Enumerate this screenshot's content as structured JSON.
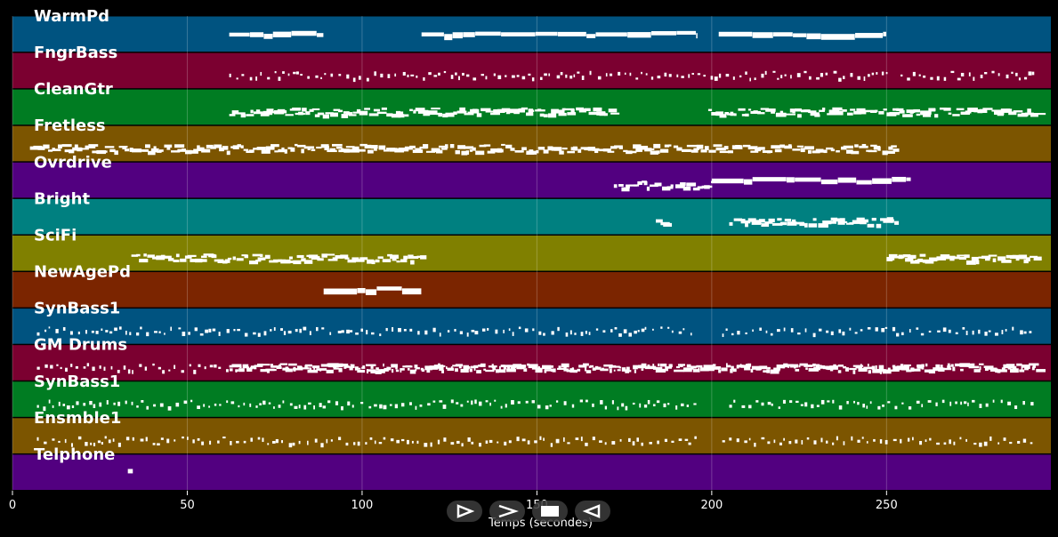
{
  "chart_data": {
    "type": "piano-roll",
    "xlabel": "Temps (secondes)",
    "xlim": [
      0,
      297
    ],
    "xticks": [
      0,
      50,
      100,
      150,
      200,
      250
    ],
    "grid": true,
    "tracks": [
      {
        "name": "WarmPd",
        "color": "#005380",
        "segments": [
          [
            62,
            89,
            "solid"
          ],
          [
            117,
            196,
            "solid"
          ],
          [
            202,
            250,
            "solid"
          ]
        ]
      },
      {
        "name": "FngrBass",
        "color": "#7b0030",
        "segments": [
          [
            62,
            250,
            "sparse"
          ],
          [
            254,
            292,
            "sparse"
          ]
        ]
      },
      {
        "name": "CleanGtr",
        "color": "#007c22",
        "segments": [
          [
            62,
            172,
            "dense"
          ],
          [
            199,
            293,
            "dense"
          ]
        ]
      },
      {
        "name": "Fretless",
        "color": "#7c5500",
        "segments": [
          [
            5,
            252,
            "dense"
          ]
        ]
      },
      {
        "name": "Ovrdrive",
        "color": "#520080",
        "segments": [
          [
            172,
            200,
            "dense"
          ],
          [
            200,
            257,
            "solid"
          ]
        ]
      },
      {
        "name": "Bright",
        "color": "#008080",
        "segments": [
          [
            184,
            187,
            "dense"
          ],
          [
            205,
            253,
            "dense"
          ]
        ]
      },
      {
        "name": "SciFi",
        "color": "#808000",
        "segments": [
          [
            34,
            117,
            "dense"
          ],
          [
            250,
            293,
            "dense"
          ]
        ]
      },
      {
        "name": "NewAgePd",
        "color": "#7b2500",
        "segments": [
          [
            89,
            117,
            "solid"
          ]
        ]
      },
      {
        "name": "SynBass1",
        "color": "#005380",
        "segments": [
          [
            7,
            196,
            "sparse"
          ],
          [
            203,
            293,
            "sparse"
          ]
        ]
      },
      {
        "name": "GM Drums",
        "color": "#7b0030",
        "segments": [
          [
            7,
            293,
            "sparse"
          ],
          [
            62,
            293,
            "dense"
          ]
        ]
      },
      {
        "name": "SynBass1",
        "color": "#007c22",
        "segments": [
          [
            7,
            196,
            "sparse"
          ],
          [
            205,
            293,
            "sparse"
          ]
        ]
      },
      {
        "name": "Ensmble1",
        "color": "#7c5500",
        "segments": [
          [
            7,
            196,
            "sparse"
          ],
          [
            203,
            293,
            "sparse"
          ]
        ]
      },
      {
        "name": "Telphone",
        "color": "#520080",
        "segments": [
          [
            33,
            34.5,
            "solid"
          ]
        ]
      }
    ]
  },
  "controls": {
    "icons": [
      "play-icon",
      "fast-forward-icon",
      "stop-icon",
      "rewind-icon"
    ]
  }
}
